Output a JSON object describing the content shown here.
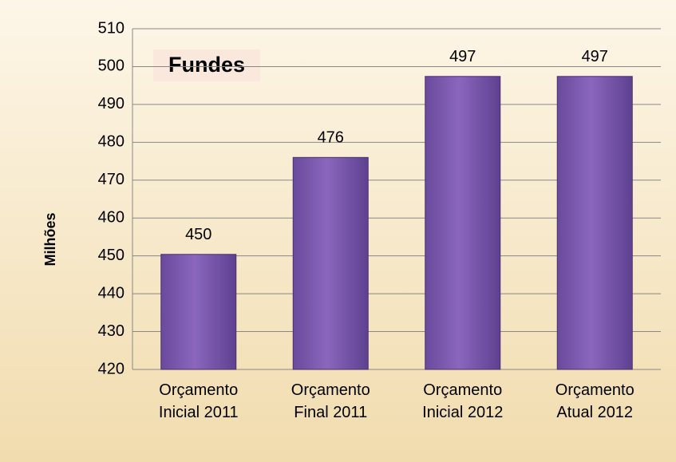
{
  "chart_data": {
    "type": "bar",
    "title": "Fundes",
    "y_label": "Milhões",
    "categories": [
      "Orçamento Inicial 2011",
      "Orçamento Final 2011",
      "Orçamento Inicial 2012",
      "Orçamento Atual 2012"
    ],
    "values": [
      450.4,
      476,
      497.4,
      497.4
    ],
    "value_labels": [
      "450",
      "476",
      "497",
      "497"
    ],
    "color": "#7d5bb0",
    "ylim": [
      420,
      510
    ],
    "yticks": [
      420,
      430,
      440,
      450,
      460,
      470,
      480,
      490,
      500,
      510
    ],
    "grid": true
  }
}
